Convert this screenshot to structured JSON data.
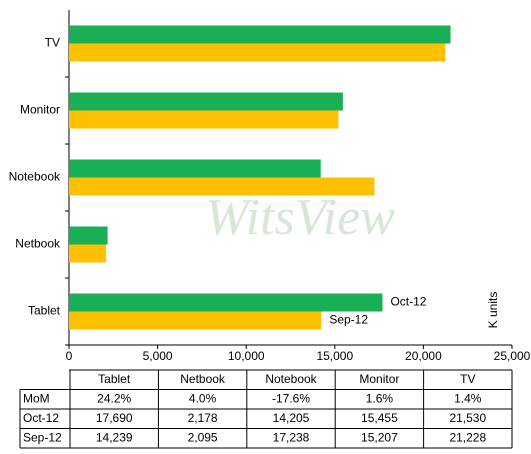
{
  "chart_data": {
    "type": "barh",
    "categories": [
      "Tablet",
      "Netbook",
      "Notebook",
      "Monitor",
      "TV"
    ],
    "series": [
      {
        "name": "Oct-12",
        "color": "#1aaf54",
        "values": [
          17690,
          2178,
          14205,
          15455,
          21530
        ],
        "value_labels": [
          "17,690",
          "2,178",
          "14,205",
          "15,455",
          "21,530"
        ]
      },
      {
        "name": "Sep-12",
        "color": "#ffc000",
        "values": [
          14239,
          2095,
          17238,
          15207,
          21228
        ],
        "value_labels": [
          "14,239",
          "2,095",
          "17,238",
          "15,207",
          "21,228"
        ]
      }
    ],
    "xlim": [
      0,
      25000
    ],
    "xticks": [
      0,
      {
        "value": 5000,
        "label": "5,000"
      },
      {
        "value": 10000,
        "label": "10,000"
      },
      {
        "value": 15000,
        "label": "15,000"
      },
      {
        "value": 20000,
        "label": "20,000"
      },
      {
        "value": 25000,
        "label": "25,000"
      }
    ],
    "xlabel": "K units",
    "watermark": "WitsView",
    "table": {
      "row_label": "MoM",
      "mom": [
        "24.2%",
        "4.0%",
        "-17.6%",
        "1.6%",
        "1.4%"
      ]
    }
  }
}
